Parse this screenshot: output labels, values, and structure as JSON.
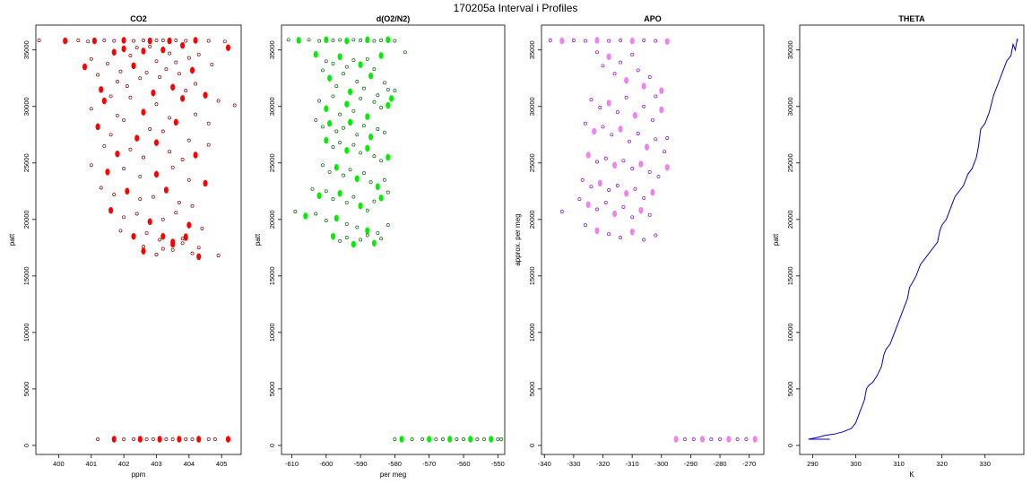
{
  "figure_title": "170205a   Interval i Profiles",
  "chart_data": [
    {
      "type": "scatter",
      "title": "CO2",
      "xlabel": "ppm",
      "ylabel": "patt",
      "xlim": [
        399.3,
        405.6
      ],
      "ylim": [
        -800,
        37200
      ],
      "xticks": [
        400,
        401,
        402,
        403,
        404,
        405
      ],
      "xtick_labels": [
        "400",
        "401",
        "402",
        "403",
        "404",
        "405"
      ],
      "yticks": [
        0,
        5000,
        10000,
        15000,
        20000,
        25000,
        30000,
        35000
      ],
      "ytick_labels": [
        "0",
        "5000",
        "10000",
        "15000",
        "20000",
        "25000",
        "30000",
        "35000"
      ],
      "colors": {
        "fill": "#ff0000",
        "stroke": "#8b0000"
      },
      "series": [
        {
          "x": [
            399.4,
            400.2,
            400.6,
            400.9,
            401.1,
            401.4,
            401.7,
            402.0,
            402.3,
            402.6,
            402.8,
            403.0,
            403.2,
            403.4,
            403.6,
            403.9,
            404.2,
            404.6,
            405.1,
            400.8,
            401.0,
            401.2,
            401.3,
            401.5,
            401.6,
            401.7,
            401.8,
            401.9,
            402.0,
            402.1,
            402.2,
            402.3,
            402.4,
            402.5,
            402.6,
            402.7,
            402.8,
            402.9,
            403.0,
            403.1,
            403.2,
            403.3,
            403.4,
            403.5,
            403.6,
            403.7,
            403.8,
            403.9,
            404.0,
            404.1,
            404.2,
            404.3,
            404.5,
            404.7,
            404.9,
            405.2,
            405.4,
            401.0,
            401.4,
            401.8,
            402.2,
            402.6,
            403.0,
            403.4,
            403.8,
            404.2,
            404.6,
            401.2,
            401.6,
            402.0,
            402.4,
            402.8,
            403.2,
            403.6,
            404.0,
            401.4,
            401.8,
            402.2,
            402.6,
            403.0,
            403.4,
            403.8,
            404.2,
            404.6,
            401.0,
            401.5,
            402.0,
            402.5,
            403.0,
            403.5,
            404.0,
            404.5,
            401.3,
            401.7,
            402.1,
            402.5,
            402.9,
            403.3,
            403.7,
            404.1,
            401.6,
            402.0,
            402.4,
            402.8,
            403.2,
            403.6,
            404.0,
            404.4,
            401.9,
            402.3,
            402.7,
            403.1,
            403.5,
            403.9,
            404.3,
            402.6,
            403.0,
            403.2,
            403.5,
            403.8,
            404.1,
            404.3,
            402.6,
            403.0,
            403.2,
            403.5,
            403.8,
            403.9,
            404.9,
            401.2,
            401.7,
            402.0,
            402.3,
            402.5,
            402.7,
            402.9,
            403.1,
            403.3,
            403.5,
            403.7,
            403.9,
            404.1,
            404.3,
            404.6,
            404.8,
            405.2
          ],
          "y": [
            35850,
            35800,
            35850,
            35750,
            35800,
            35850,
            35800,
            35850,
            35800,
            35850,
            35800,
            35850,
            35850,
            35800,
            35850,
            35800,
            35850,
            35800,
            35750,
            33500,
            34200,
            32800,
            31500,
            33800,
            30900,
            34800,
            32200,
            33100,
            35100,
            31800,
            34500,
            33600,
            35200,
            32500,
            34900,
            33000,
            35300,
            31200,
            34000,
            32600,
            35000,
            33300,
            34700,
            31700,
            33900,
            32900,
            35400,
            31400,
            34300,
            33200,
            32000,
            34600,
            31000,
            33700,
            30500,
            35200,
            30100,
            29800,
            30500,
            29200,
            30800,
            29500,
            30200,
            29000,
            30700,
            29300,
            28500,
            28200,
            27500,
            28800,
            27200,
            28000,
            27800,
            28600,
            27000,
            26500,
            25800,
            26200,
            25500,
            26800,
            26000,
            25300,
            25700,
            26600,
            24800,
            24200,
            24500,
            23800,
            24000,
            24600,
            23500,
            23200,
            22800,
            22200,
            22500,
            21800,
            22000,
            22600,
            21500,
            21200,
            20800,
            20200,
            20500,
            19800,
            20000,
            20600,
            19500,
            19200,
            19000,
            18500,
            18800,
            18200,
            18000,
            18600,
            17500,
            17200,
            16900,
            17400,
            17800,
            18300,
            17000,
            16700,
            17600,
            16900,
            18500,
            17300,
            17900,
            18400,
            16800,
            550,
            550,
            550,
            550,
            550,
            550,
            550,
            550,
            550,
            550,
            550,
            550,
            550,
            550,
            550,
            550,
            550
          ]
        }
      ]
    },
    {
      "type": "scatter",
      "title": "d(O2/N2)",
      "xlabel": "per meg",
      "ylabel": "patt",
      "xlim": [
        -613,
        -548
      ],
      "ylim": [
        -800,
        37200
      ],
      "xticks": [
        -610,
        -600,
        -590,
        -580,
        -570,
        -560,
        -550
      ],
      "xtick_labels": [
        "-610",
        "-600",
        "-590",
        "-580",
        "-570",
        "-560",
        "-550"
      ],
      "yticks": [
        0,
        5000,
        10000,
        15000,
        20000,
        25000,
        30000,
        35000
      ],
      "ytick_labels": [
        "0",
        "5000",
        "10000",
        "15000",
        "20000",
        "25000",
        "30000",
        "35000"
      ],
      "colors": {
        "fill": "#00ee00",
        "stroke": "#006400"
      },
      "series": [
        {
          "x": [
            -611,
            -608,
            -605,
            -602,
            -600,
            -598,
            -596,
            -594,
            -592,
            -590,
            -588,
            -586,
            -584,
            -582,
            -580,
            -577,
            -603,
            -601,
            -600,
            -599,
            -598,
            -597,
            -596,
            -595,
            -594,
            -593,
            -592,
            -591,
            -590,
            -589,
            -588,
            -587,
            -586,
            -585,
            -584,
            -583,
            -582,
            -581,
            -580,
            -602,
            -600,
            -598,
            -596,
            -594,
            -592,
            -590,
            -588,
            -586,
            -584,
            -582,
            -603,
            -601,
            -599,
            -597,
            -595,
            -593,
            -591,
            -589,
            -587,
            -585,
            -583,
            -600,
            -598,
            -596,
            -594,
            -592,
            -590,
            -588,
            -586,
            -584,
            -582,
            -601,
            -599,
            -597,
            -595,
            -593,
            -591,
            -589,
            -587,
            -585,
            -583,
            -604,
            -602,
            -600,
            -598,
            -596,
            -594,
            -592,
            -590,
            -588,
            -586,
            -584,
            -582,
            -609,
            -606,
            -603,
            -600,
            -597,
            -594,
            -591,
            -588,
            -585,
            -582,
            -598,
            -596,
            -594,
            -592,
            -590,
            -588,
            -586,
            -584,
            -580,
            -578,
            -575,
            -572,
            -570,
            -568,
            -566,
            -564,
            -562,
            -560,
            -558,
            -556,
            -554,
            -552,
            -550,
            -549
          ],
          "y": [
            35900,
            35850,
            35900,
            35800,
            35900,
            35850,
            35900,
            35800,
            35900,
            35850,
            35900,
            35800,
            35850,
            35900,
            35800,
            34800,
            34600,
            33200,
            34000,
            32500,
            33800,
            31800,
            34400,
            32900,
            33500,
            31300,
            34100,
            32200,
            33700,
            31600,
            34200,
            32700,
            33300,
            31000,
            34500,
            32100,
            31500,
            30700,
            31400,
            30500,
            29800,
            30900,
            29300,
            30200,
            29600,
            30700,
            29100,
            30400,
            29900,
            30100,
            28800,
            28200,
            28500,
            27800,
            28100,
            28600,
            27500,
            28300,
            27300,
            28000,
            27700,
            27000,
            26400,
            26800,
            26100,
            26600,
            25900,
            26300,
            25600,
            25200,
            25500,
            24800,
            24200,
            24600,
            23900,
            24400,
            23600,
            24100,
            23300,
            22900,
            23500,
            22700,
            22100,
            22500,
            21800,
            22300,
            21500,
            22000,
            21200,
            20800,
            21600,
            21900,
            22400,
            20700,
            20300,
            20500,
            19900,
            20100,
            19600,
            19300,
            19000,
            18800,
            19500,
            18500,
            18100,
            18400,
            17800,
            18200,
            18600,
            17900,
            18300,
            550,
            550,
            550,
            550,
            550,
            550,
            550,
            550,
            550,
            550,
            550,
            550,
            550,
            550,
            550,
            550
          ]
        }
      ]
    },
    {
      "type": "scatter",
      "title": "APO",
      "xlabel": "",
      "ylabel": "approx. per meg",
      "xlim": [
        -341,
        -265
      ],
      "ylim": [
        -800,
        37200
      ],
      "xticks": [
        -340,
        -330,
        -320,
        -310,
        -300,
        -290,
        -280,
        -270
      ],
      "xtick_labels": [
        "-340",
        "-330",
        "-320",
        "-310",
        "-300",
        "-290",
        "-280",
        "-270"
      ],
      "yticks": [
        0,
        5000,
        10000,
        15000,
        20000,
        25000,
        30000,
        35000
      ],
      "ytick_labels": [
        "0",
        "5000",
        "10000",
        "15000",
        "20000",
        "25000",
        "30000",
        "35000"
      ],
      "colors": {
        "fill": "#ee82ee",
        "stroke": "#9400d3"
      },
      "series": [
        {
          "x": [
            -338,
            -334,
            -330,
            -326,
            -322,
            -318,
            -314,
            -310,
            -306,
            -302,
            -298,
            -322,
            -320,
            -318,
            -316,
            -314,
            -312,
            -310,
            -308,
            -306,
            -304,
            -302,
            -300,
            -324,
            -321,
            -318,
            -315,
            -312,
            -309,
            -306,
            -303,
            -300,
            -298,
            -326,
            -323,
            -320,
            -317,
            -314,
            -311,
            -308,
            -305,
            -302,
            -299,
            -325,
            -322,
            -319,
            -316,
            -313,
            -310,
            -307,
            -304,
            -301,
            -298,
            -327,
            -324,
            -321,
            -318,
            -315,
            -312,
            -309,
            -306,
            -303,
            -334,
            -328,
            -325,
            -322,
            -319,
            -316,
            -313,
            -310,
            -307,
            -304,
            -326,
            -322,
            -318,
            -314,
            -310,
            -306,
            -302,
            -295,
            -292,
            -289,
            -286,
            -283,
            -280,
            -277,
            -274,
            -271,
            -268
          ],
          "y": [
            35850,
            35800,
            35850,
            35800,
            35850,
            35800,
            35850,
            35800,
            35850,
            35800,
            35750,
            34800,
            33600,
            34400,
            32900,
            33900,
            32300,
            34600,
            33200,
            31800,
            32600,
            30900,
            31400,
            30600,
            29900,
            30300,
            29500,
            30800,
            29200,
            30000,
            28800,
            29700,
            27200,
            28500,
            27800,
            28200,
            27500,
            28000,
            26900,
            27600,
            26400,
            27100,
            26000,
            25700,
            25100,
            25400,
            24800,
            25200,
            24500,
            24900,
            24200,
            23800,
            24600,
            23500,
            22900,
            23200,
            22600,
            23000,
            22300,
            22700,
            21900,
            22400,
            20700,
            21800,
            21300,
            20900,
            21500,
            20500,
            21100,
            20200,
            20800,
            20400,
            19500,
            19000,
            18700,
            18400,
            18900,
            18200,
            18600,
            550,
            550,
            550,
            550,
            550,
            550,
            550,
            550,
            550,
            550
          ]
        }
      ]
    },
    {
      "type": "line",
      "title": "THETA",
      "xlabel": "K",
      "ylabel": "patt",
      "xlim": [
        287,
        339
      ],
      "ylim": [
        -800,
        37200
      ],
      "xticks": [
        290,
        300,
        310,
        320,
        330
      ],
      "xtick_labels": [
        "290",
        "300",
        "310",
        "320",
        "330"
      ],
      "yticks": [
        0,
        5000,
        10000,
        15000,
        20000,
        25000,
        30000,
        35000
      ],
      "ytick_labels": [
        "0",
        "5000",
        "10000",
        "15000",
        "20000",
        "25000",
        "30000",
        "35000"
      ],
      "colors": {
        "line": "#0000cd"
      },
      "series": [
        {
          "x": [
            294,
            289,
            291,
            293,
            295,
            297,
            299,
            300,
            301,
            302,
            302.5,
            303,
            304,
            305,
            306,
            306.5,
            307,
            308,
            309,
            310,
            311,
            312,
            312.5,
            313,
            314,
            315,
            316,
            317,
            318,
            319,
            319.5,
            320,
            321,
            322,
            323,
            324,
            325,
            326,
            327,
            328,
            328.5,
            329,
            330,
            331,
            332,
            333,
            334,
            335,
            336,
            336.5,
            337,
            337.5,
            337.5
          ],
          "y": [
            550,
            550,
            700,
            900,
            1000,
            1200,
            1500,
            2000,
            3000,
            4000,
            5000,
            5300,
            5600,
            6200,
            7000,
            8000,
            8500,
            9000,
            10000,
            11000,
            12000,
            13000,
            14000,
            14300,
            15000,
            16000,
            16500,
            17000,
            17500,
            18000,
            19000,
            19500,
            20000,
            21000,
            22000,
            22500,
            23000,
            24000,
            24500,
            25500,
            26500,
            28000,
            28500,
            29500,
            31000,
            32000,
            33000,
            34000,
            34500,
            35500,
            35000,
            36000,
            35800
          ]
        }
      ]
    }
  ]
}
